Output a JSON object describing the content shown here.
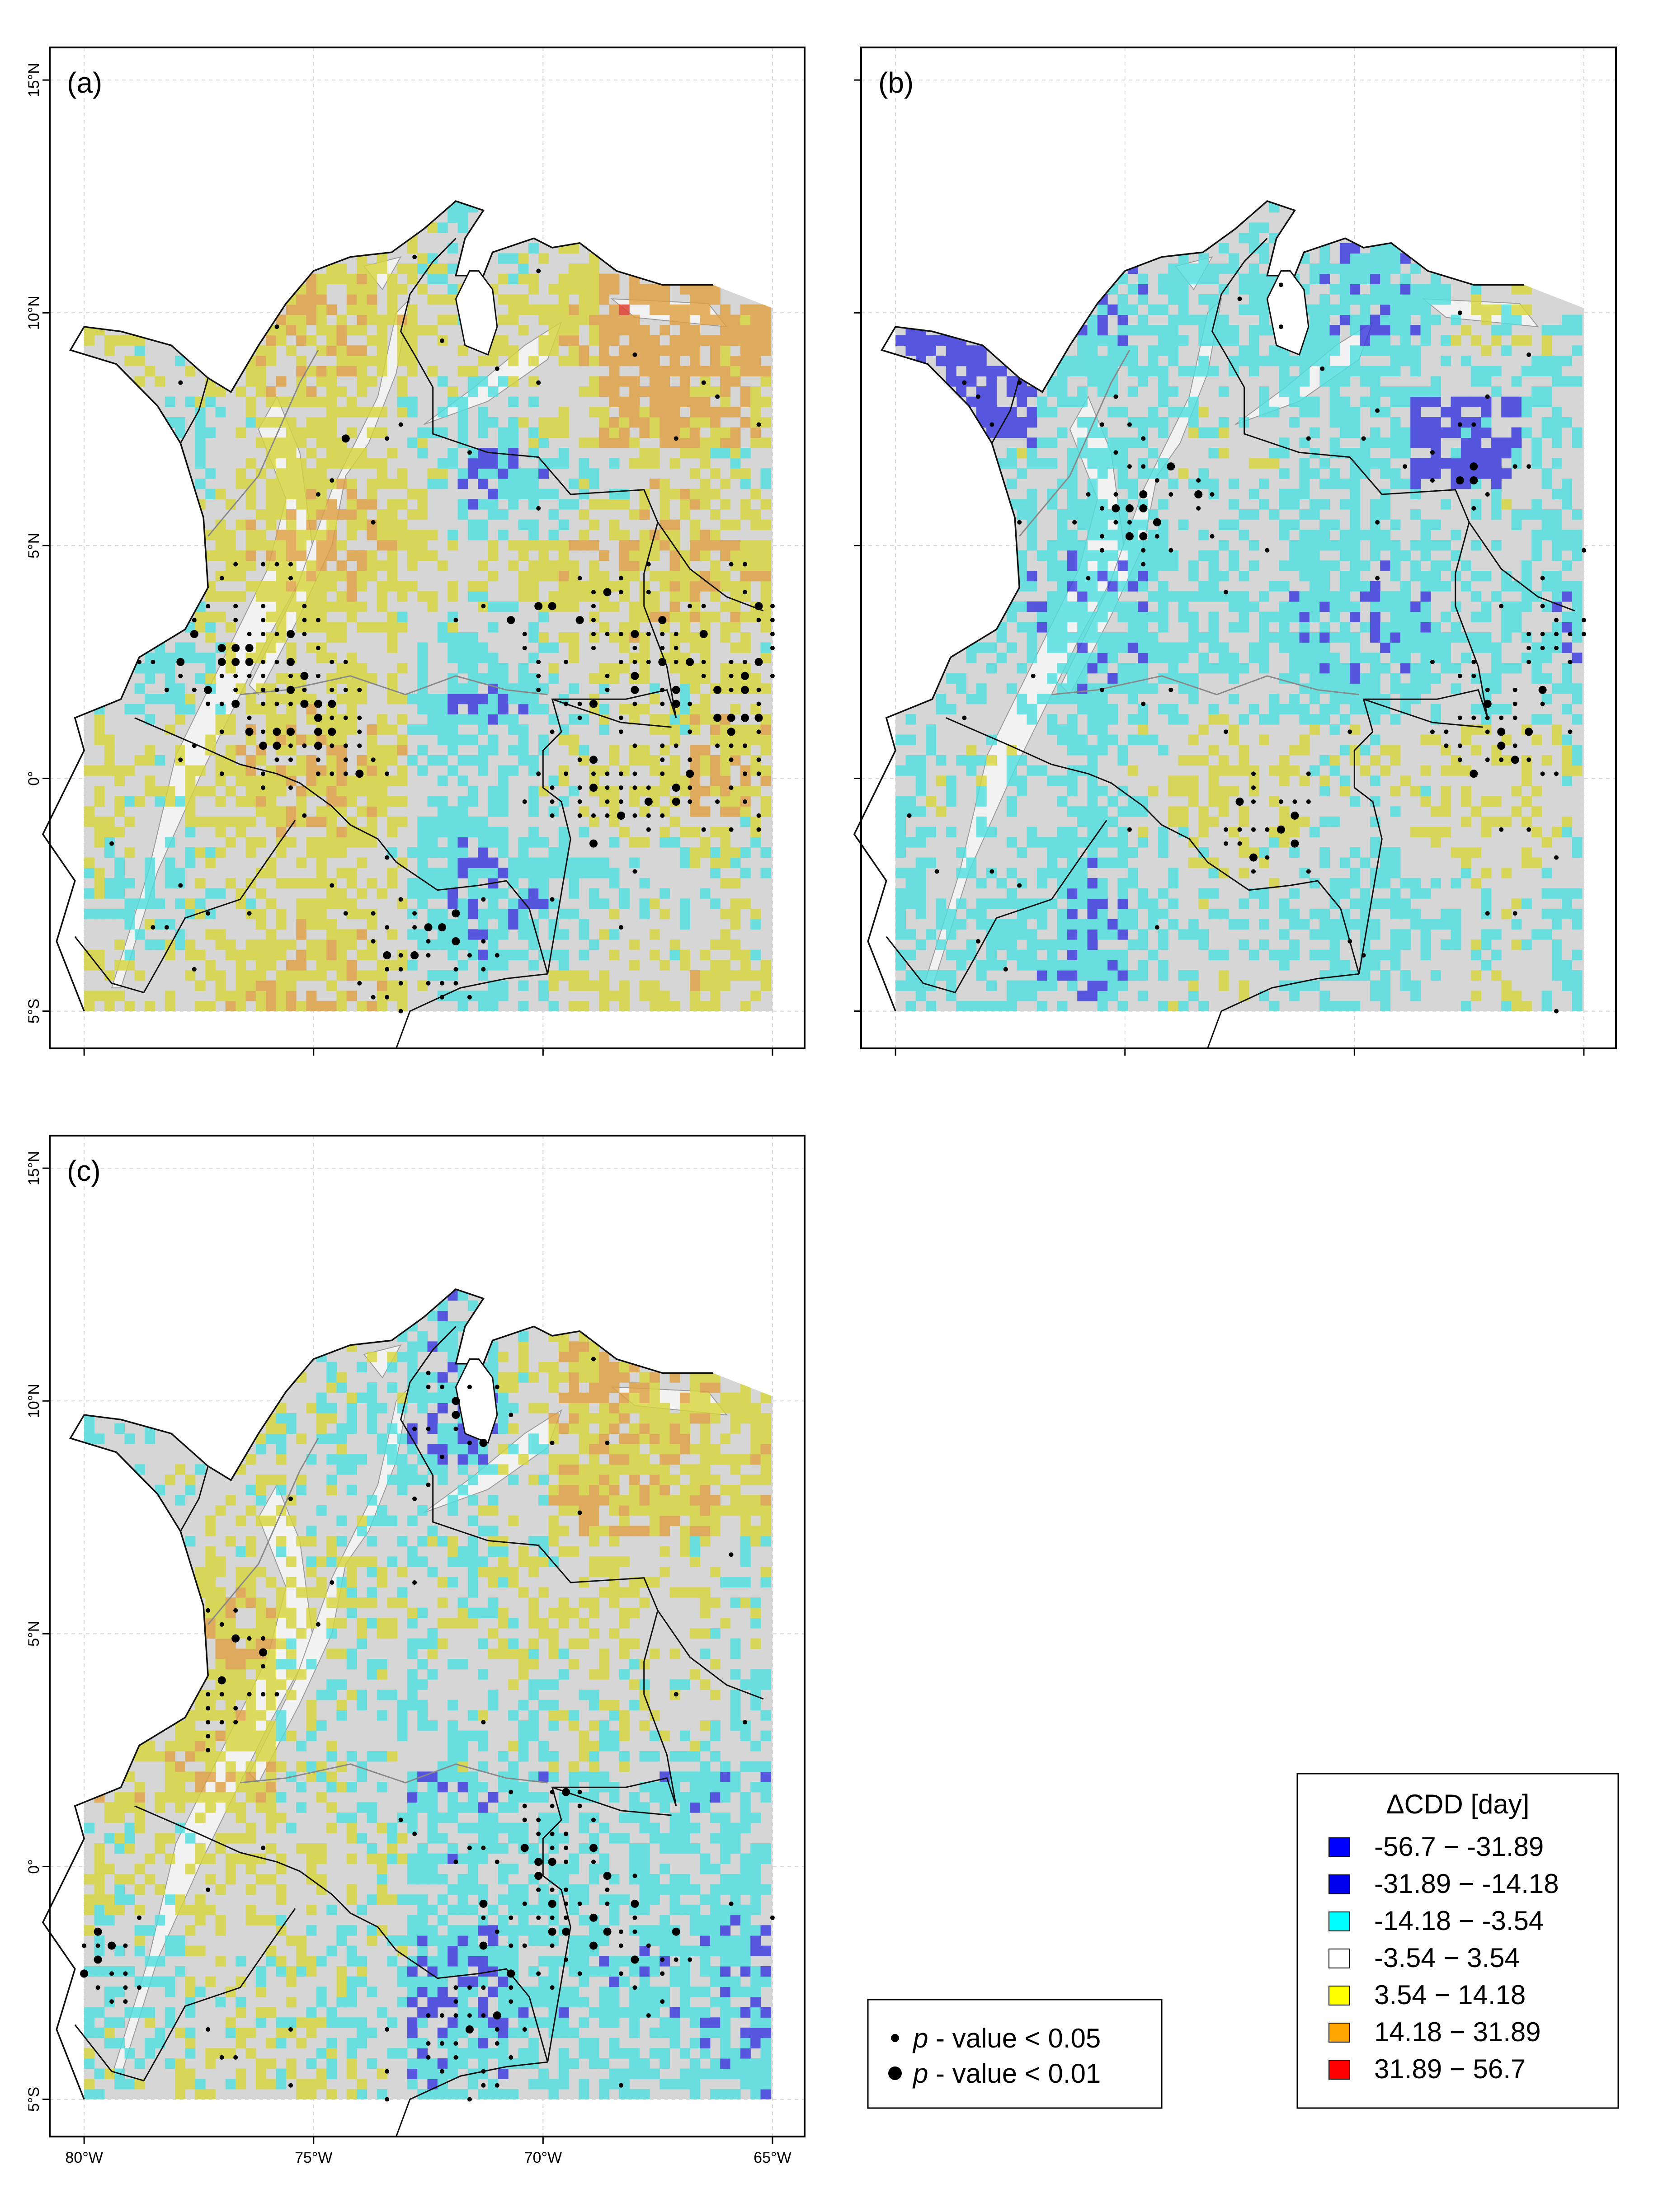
{
  "panels": [
    {
      "id": "a",
      "label": "(a)",
      "scheme": "dry"
    },
    {
      "id": "b",
      "label": "(b)",
      "scheme": "wet"
    },
    {
      "id": "c",
      "label": "(c)",
      "scheme": "mixed"
    }
  ],
  "axes": {
    "lat_ticks": [
      {
        "value": 15,
        "label": "15°N"
      },
      {
        "value": 10,
        "label": "10°N"
      },
      {
        "value": 5,
        "label": "5°N"
      },
      {
        "value": 0,
        "label": "0°"
      },
      {
        "value": -5,
        "label": "5°S"
      }
    ],
    "lon_ticks": [
      {
        "value": -80,
        "label": "80°W"
      },
      {
        "value": -75,
        "label": "75°W"
      },
      {
        "value": -70,
        "label": "70°W"
      },
      {
        "value": -65,
        "label": "65°W"
      }
    ]
  },
  "legend": {
    "title": "ΔCDD [day]",
    "items": [
      {
        "label": "-56.7 − -31.89",
        "color": "#0000ff"
      },
      {
        "label": "-31.89 − -14.18",
        "color": "#0000ee"
      },
      {
        "label": "-14.18 − -3.54",
        "color": "#00ffff"
      },
      {
        "label": "-3.54 − 3.54",
        "color": "#ffffff"
      },
      {
        "label": "3.54 − 14.18",
        "color": "#ffff00"
      },
      {
        "label": "14.18 − 31.89",
        "color": "#ffa500"
      },
      {
        "label": "31.89 − 56.7",
        "color": "#ff0000"
      }
    ]
  },
  "pvalue_legend": {
    "items": [
      {
        "p": "p",
        "text": " - value < 0.05",
        "size": "small"
      },
      {
        "p": "p",
        "text": " - value < 0.01",
        "size": "large"
      }
    ]
  }
}
